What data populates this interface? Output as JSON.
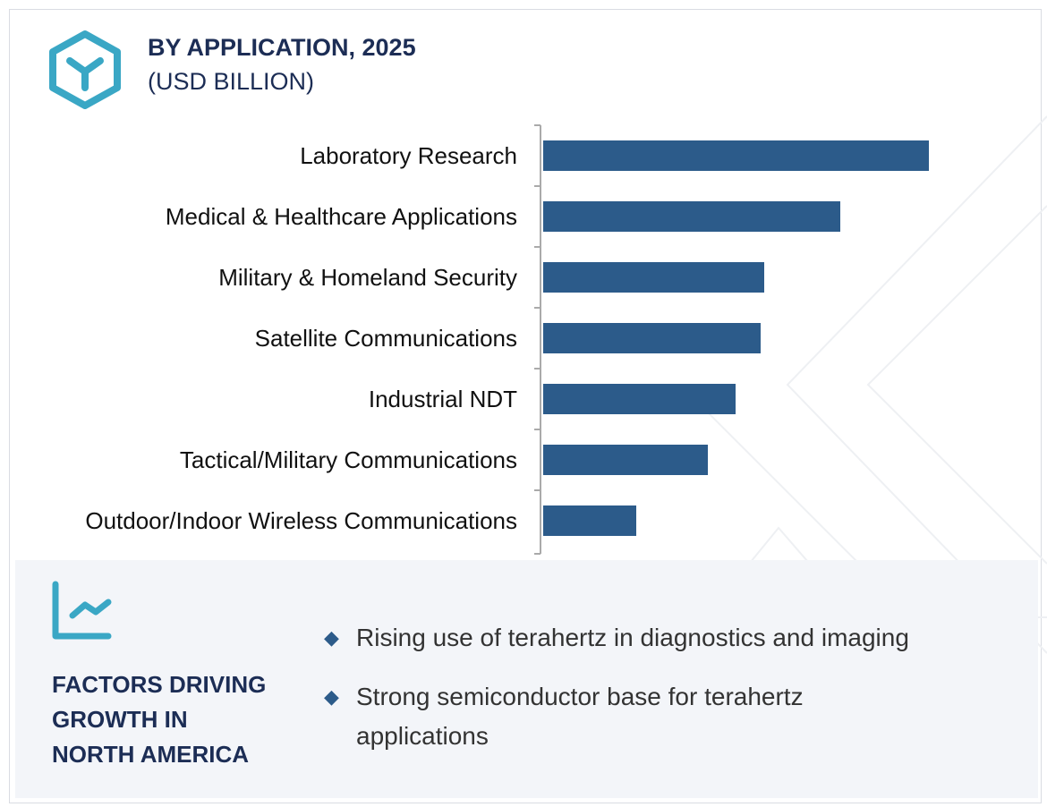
{
  "header": {
    "title": "BY APPLICATION, 2025",
    "subtitle": "(USD BILLION)",
    "logo_icon": "hexagon-cube-icon"
  },
  "colors": {
    "bar": "#2c5b8a",
    "accent": "#3aa7c5",
    "title": "#1c2d55",
    "panel": "#f3f5f9"
  },
  "chart_data": {
    "type": "bar",
    "orientation": "horizontal",
    "title": "BY APPLICATION, 2025",
    "ylabel": "(USD BILLION)",
    "categories": [
      "Laboratory Research",
      "Medical & Healthcare Applications",
      "Military & Homeland Security",
      "Satellite Communications",
      "Industrial NDT",
      "Tactical/Military Communications",
      "Outdoor/Indoor Wireless Communications"
    ],
    "values": [
      4.31,
      3.32,
      2.47,
      2.43,
      2.15,
      1.84,
      1.04
    ],
    "value_labels_shown": false,
    "grid": false
  },
  "factors": {
    "icon": "line-chart-icon",
    "heading_lines": [
      "FACTORS DRIVING",
      "GROWTH IN",
      "NORTH AMERICA"
    ],
    "bullets": [
      "Rising use of terahertz in diagnostics and imaging",
      "Strong semiconductor base for terahertz applications"
    ]
  }
}
